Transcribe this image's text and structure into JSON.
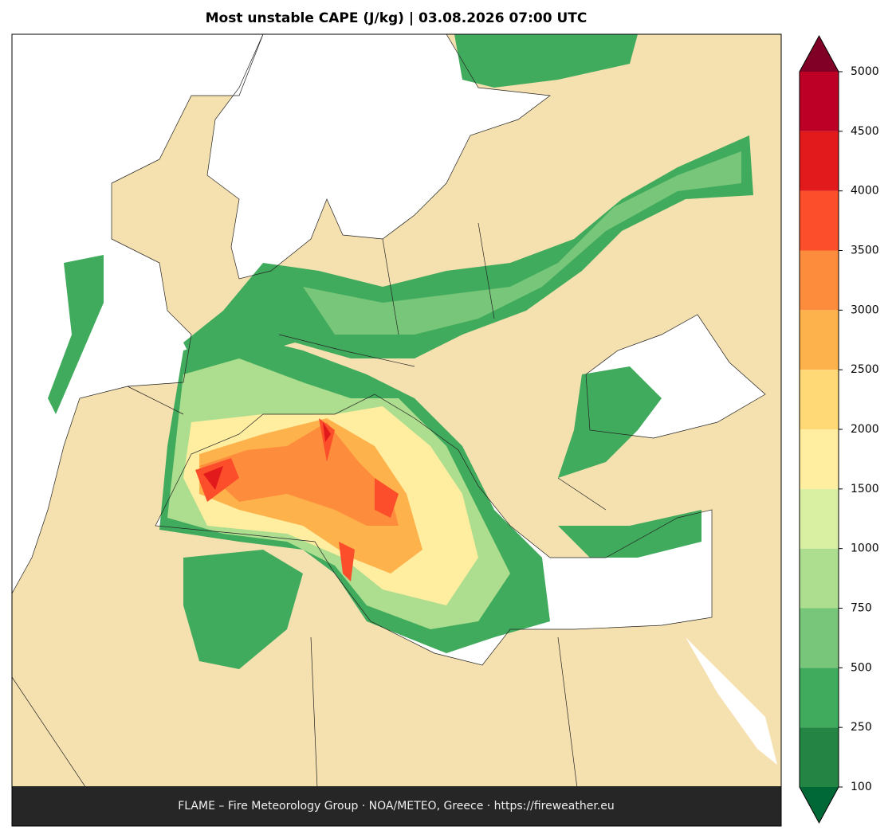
{
  "map": {
    "title": "Most unstable CAPE (J/kg)  |  03.08.2026 07:00 UTC",
    "footer": "FLAME – Fire Meteorology Group · NOA/METEO, Greece · https://fireweather.eu",
    "land_color": "#f5e0b0",
    "colorbar": {
      "levels": [
        100,
        250,
        500,
        750,
        1000,
        1500,
        2000,
        2500,
        3000,
        3500,
        4000,
        4500,
        5000
      ],
      "colors": [
        "#238443",
        "#41ab5d",
        "#78c679",
        "#addd8e",
        "#d9f0a3",
        "#ffeda0",
        "#fed976",
        "#feb24c",
        "#fd8d3c",
        "#fc4e2a",
        "#e31a1c",
        "#bd0026"
      ],
      "under_color": "#006837",
      "over_color": "#800026"
    }
  }
}
